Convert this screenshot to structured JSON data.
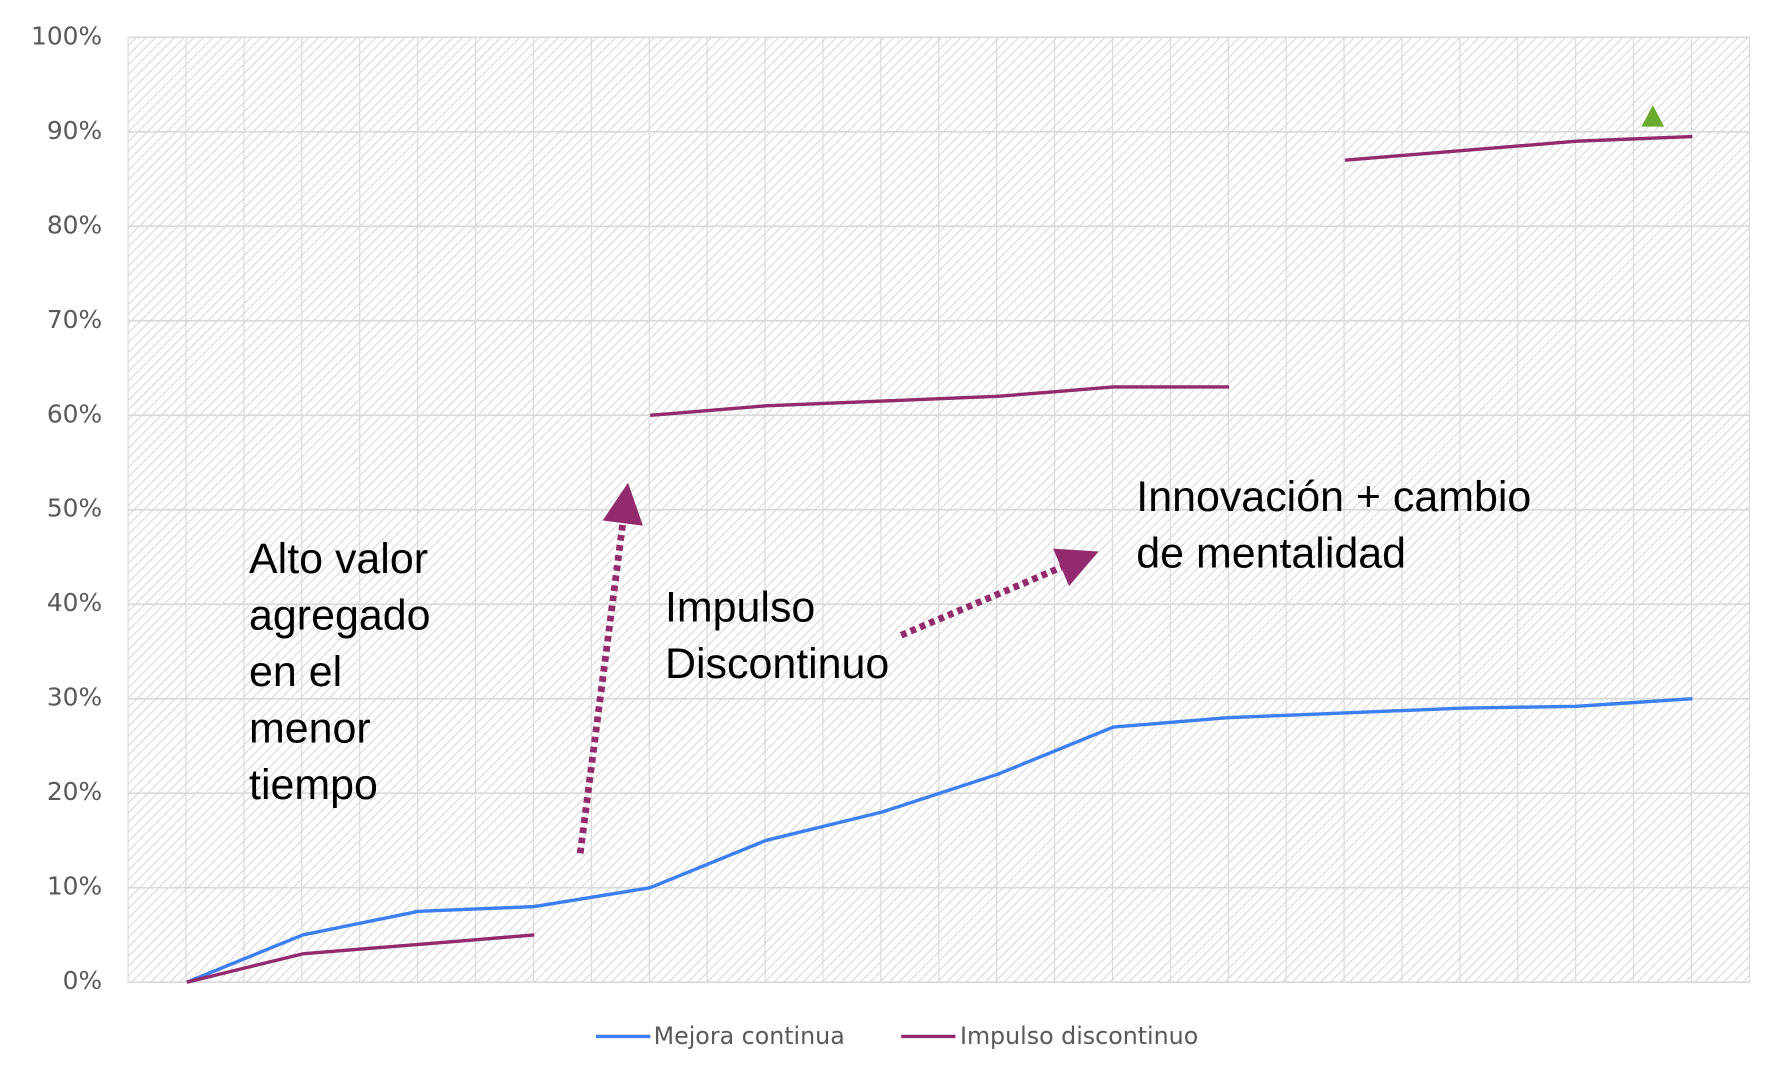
{
  "chart_data": {
    "type": "line",
    "categories": [
      null,
      null,
      null,
      null,
      null,
      null,
      null,
      null,
      null,
      null,
      null,
      null,
      null,
      null,
      null,
      null,
      null,
      null,
      null,
      null,
      null,
      null,
      null,
      null,
      null,
      null,
      null
    ],
    "series": [
      {
        "name": "Mejora continua",
        "color": "#3b7ff2",
        "values": [
          0,
          2.5,
          5,
          6.25,
          7.5,
          7.75,
          8,
          9,
          10,
          12.5,
          15,
          16.5,
          18,
          20,
          22,
          24.5,
          27,
          27.5,
          28,
          28.25,
          28.5,
          28.75,
          29,
          29.1,
          29.2,
          29.6,
          30
        ]
      },
      {
        "name": "Impulso discontinuo",
        "color": "#932a6e",
        "values": [
          0,
          1.5,
          3,
          3.5,
          4,
          4.5,
          5,
          null,
          60,
          60.5,
          61,
          61.25,
          61.5,
          61.75,
          62,
          62.5,
          63,
          63,
          63,
          null,
          87,
          87.5,
          88,
          88.5,
          89,
          89.25,
          89.5
        ]
      }
    ],
    "ylim": [
      0,
      100
    ],
    "yticks": [
      {
        "value": 0,
        "label": "0%"
      },
      {
        "value": 10,
        "label": "10%"
      },
      {
        "value": 20,
        "label": "20%"
      },
      {
        "value": 30,
        "label": "30%"
      },
      {
        "value": 40,
        "label": "40%"
      },
      {
        "value": 50,
        "label": "50%"
      },
      {
        "value": 60,
        "label": "60%"
      },
      {
        "value": 70,
        "label": "70%"
      },
      {
        "value": 80,
        "label": "80%"
      },
      {
        "value": 90,
        "label": "90%"
      },
      {
        "value": 100,
        "label": "100%"
      }
    ],
    "grid": true,
    "legend": "bottom",
    "annotations": [
      [
        "Alto valor",
        "agregado",
        "en el",
        "menor",
        "tiempo"
      ],
      [
        "Impulso",
        "Discontinuo"
      ],
      [
        "Innovación + cambio",
        "de mentalidad"
      ]
    ]
  }
}
